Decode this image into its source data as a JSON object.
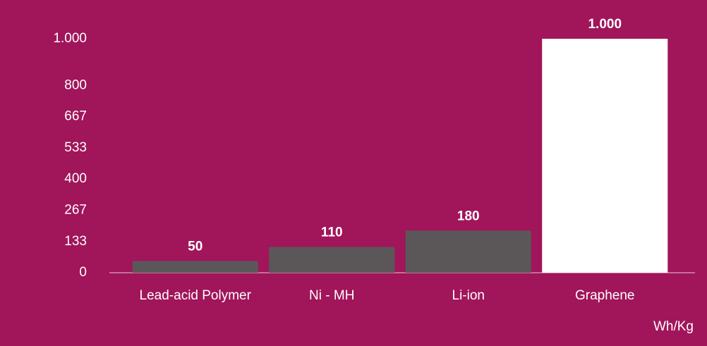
{
  "chart_data": {
    "type": "bar",
    "categories": [
      "Lead-acid Polymer",
      "Ni - MH",
      "Li-ion",
      "Graphene"
    ],
    "values": [
      50,
      110,
      180,
      1000
    ],
    "value_labels": [
      "50",
      "110",
      "180",
      "1.000"
    ],
    "colors": [
      "#5b5759",
      "#5b5759",
      "#5b5759",
      "#ffffff"
    ],
    "ylim": [
      0,
      1000
    ],
    "yticks": [
      0,
      133,
      267,
      400,
      533,
      667,
      800,
      {
        "value": 1000,
        "label": "1.000"
      }
    ],
    "y_axis_unit": "Wh/Kg",
    "grid": false
  }
}
